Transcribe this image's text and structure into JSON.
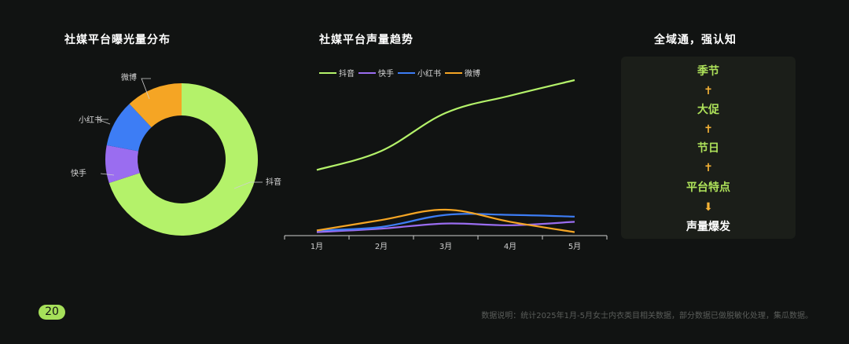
{
  "colors": {
    "background": "#111312",
    "douyin": "#b4f26a",
    "kuaishou": "#9a6df0",
    "xiaohongshu": "#3d7df5",
    "weibo": "#f5a524",
    "accent": "#a6e05a"
  },
  "chart_data": [
    {
      "type": "pie",
      "title": "社媒平台曝光量分布",
      "donut": true,
      "labels": [
        "抖音",
        "快手",
        "小红书",
        "微博"
      ],
      "values": [
        70,
        8,
        10,
        12
      ],
      "colors": [
        "#b4f26a",
        "#9a6df0",
        "#3d7df5",
        "#f5a524"
      ]
    },
    {
      "type": "line",
      "title": "社媒平台声量趋势",
      "categories": [
        "1月",
        "2月",
        "3月",
        "4月",
        "5月"
      ],
      "legend_position": "top-left",
      "ylim": [
        0,
        100
      ],
      "series": [
        {
          "name": "抖音",
          "color": "#b4f26a",
          "values": [
            38,
            49,
            71,
            81,
            90
          ]
        },
        {
          "name": "快手",
          "color": "#9a6df0",
          "values": [
            2,
            4,
            7,
            6,
            8
          ]
        },
        {
          "name": "小红书",
          "color": "#3d7df5",
          "values": [
            3,
            5,
            12,
            12,
            11
          ]
        },
        {
          "name": "微博",
          "color": "#f5a524",
          "values": [
            3,
            9,
            15,
            8,
            2
          ]
        }
      ]
    }
  ],
  "flow": {
    "title": "全域通，强认知",
    "steps": [
      "季节",
      "大促",
      "节日",
      "平台特点",
      "声量爆发"
    ],
    "arrow_up": "✝",
    "arrow_down": "⬇"
  },
  "page_number": "20",
  "footnote": "数据说明：统计2025年1月-5月女士内衣类目相关数据，部分数据已做脱敏化处理，集瓜数据。"
}
